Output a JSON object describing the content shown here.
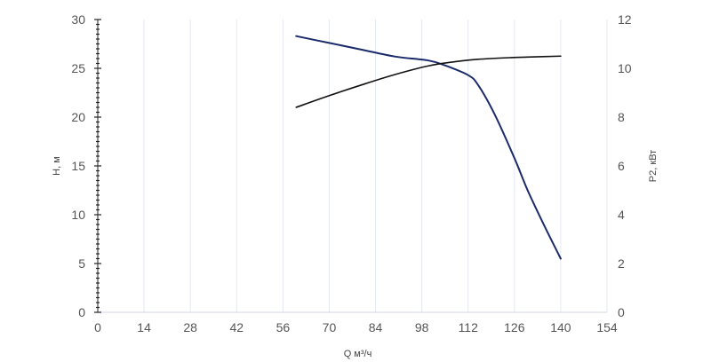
{
  "chart_data": {
    "type": "line",
    "x_axis": {
      "label": "Q м³/ч",
      "min": 0,
      "max": 154,
      "ticks": [
        0,
        14,
        28,
        42,
        56,
        70,
        84,
        98,
        112,
        126,
        140,
        154
      ],
      "tick_labels": [
        "0",
        "14",
        "28",
        "42",
        "56",
        "70",
        "84",
        "98",
        "112",
        "126",
        "140",
        "154"
      ]
    },
    "y_axis_left": {
      "label": "H, м",
      "min": 0,
      "max": 30,
      "ticks": [
        0,
        5,
        10,
        15,
        20,
        25,
        30
      ],
      "tick_labels": [
        "0",
        "5",
        "10",
        "15",
        "20",
        "25",
        "30"
      ]
    },
    "y_axis_right": {
      "label": "P2, кВт",
      "min": 0,
      "max": 12,
      "ticks": [
        0,
        2,
        4,
        6,
        8,
        10,
        12
      ],
      "tick_labels": [
        "0",
        "2",
        "4",
        "6",
        "8",
        "10",
        "12"
      ]
    },
    "grid": "vertical",
    "series": [
      {
        "axis": "left",
        "color": "#1b2a6b",
        "x": [
          60,
          70,
          80,
          90,
          100,
          105,
          112,
          115,
          120,
          126,
          130,
          135,
          140
        ],
        "y": [
          28.3,
          27.6,
          26.9,
          26.2,
          25.8,
          25.3,
          24.3,
          23.3,
          20.3,
          15.8,
          12.5,
          8.9,
          5.5
        ]
      },
      {
        "axis": "right",
        "color": "#111111",
        "x": [
          60,
          70,
          80,
          90,
          100,
          108,
          115,
          125,
          130,
          140
        ],
        "y": [
          8.4,
          8.88,
          9.33,
          9.75,
          10.1,
          10.27,
          10.37,
          10.44,
          10.46,
          10.5
        ]
      }
    ]
  }
}
